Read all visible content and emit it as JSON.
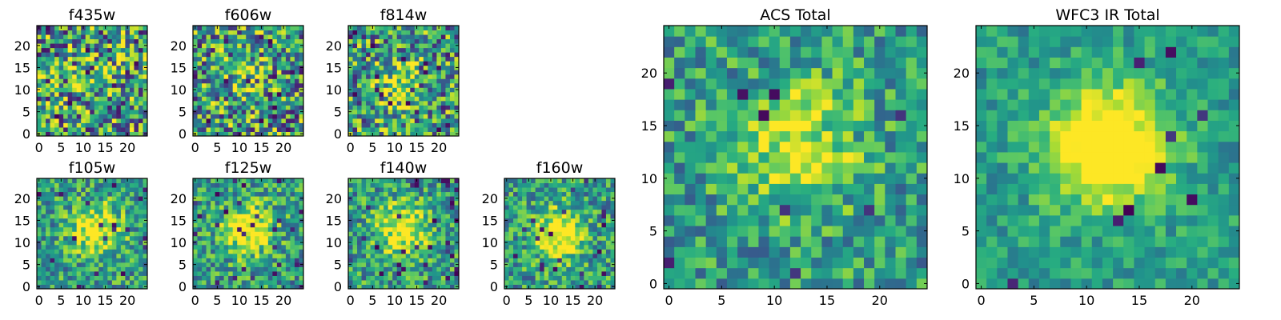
{
  "figure": {
    "colormap": "viridis",
    "colors": {
      "low": "#440154",
      "mid": "#21918c",
      "high": "#fde725"
    },
    "background": "#ffffff"
  },
  "chart_data": [
    {
      "type": "heatmap",
      "title": "f435w",
      "grid_size": 25,
      "xlim": [
        0,
        24
      ],
      "ylim": [
        0,
        24
      ],
      "x_ticks": [
        "0",
        "5",
        "10",
        "15",
        "20"
      ],
      "y_ticks": [
        "0",
        "5",
        "10",
        "15",
        "20"
      ],
      "pattern": {
        "center": [
          12,
          12
        ],
        "peak": 0.15,
        "noise": 0.95,
        "dark_pixels": 0.04
      }
    },
    {
      "type": "heatmap",
      "title": "f606w",
      "grid_size": 25,
      "xlim": [
        0,
        24
      ],
      "ylim": [
        0,
        24
      ],
      "x_ticks": [
        "0",
        "5",
        "10",
        "15",
        "20"
      ],
      "y_ticks": [
        "0",
        "5",
        "10",
        "15",
        "20"
      ],
      "pattern": {
        "center": [
          12,
          12
        ],
        "peak": 0.2,
        "noise": 0.9,
        "dark_pixels": 0.05
      }
    },
    {
      "type": "heatmap",
      "title": "f814w",
      "grid_size": 25,
      "xlim": [
        0,
        24
      ],
      "ylim": [
        0,
        24
      ],
      "x_ticks": [
        "0",
        "5",
        "10",
        "15",
        "20"
      ],
      "y_ticks": [
        "0",
        "5",
        "10",
        "15",
        "20"
      ],
      "pattern": {
        "center": [
          12,
          12
        ],
        "peak": 0.3,
        "noise": 0.85,
        "dark_pixels": 0.05
      }
    },
    {
      "type": "heatmap",
      "title": "f105w",
      "grid_size": 25,
      "xlim": [
        0,
        24
      ],
      "ylim": [
        0,
        24
      ],
      "x_ticks": [
        "0",
        "5",
        "10",
        "15",
        "20"
      ],
      "y_ticks": [
        "0",
        "5",
        "10",
        "15",
        "20"
      ],
      "pattern": {
        "center": [
          13,
          13
        ],
        "peak": 0.55,
        "noise": 0.6,
        "dark_pixels": 0.04
      }
    },
    {
      "type": "heatmap",
      "title": "f125w",
      "grid_size": 25,
      "xlim": [
        0,
        24
      ],
      "ylim": [
        0,
        24
      ],
      "x_ticks": [
        "0",
        "5",
        "10",
        "15",
        "20"
      ],
      "y_ticks": [
        "0",
        "5",
        "10",
        "15",
        "20"
      ],
      "pattern": {
        "center": [
          12,
          13
        ],
        "peak": 0.55,
        "noise": 0.6,
        "dark_pixels": 0.05
      }
    },
    {
      "type": "heatmap",
      "title": "f140w",
      "grid_size": 25,
      "xlim": [
        0,
        24
      ],
      "ylim": [
        0,
        24
      ],
      "x_ticks": [
        "0",
        "5",
        "10",
        "15",
        "20"
      ],
      "y_ticks": [
        "0",
        "5",
        "10",
        "15",
        "20"
      ],
      "pattern": {
        "center": [
          12,
          13
        ],
        "peak": 0.55,
        "noise": 0.6,
        "dark_pixels": 0.04
      }
    },
    {
      "type": "heatmap",
      "title": "f160w",
      "grid_size": 25,
      "xlim": [
        0,
        24
      ],
      "ylim": [
        0,
        24
      ],
      "x_ticks": [
        "0",
        "5",
        "10",
        "15",
        "20"
      ],
      "y_ticks": [
        "0",
        "5",
        "10",
        "15",
        "20"
      ],
      "pattern": {
        "center": [
          12,
          12
        ],
        "peak": 0.6,
        "noise": 0.6,
        "dark_pixels": 0.05
      }
    },
    {
      "type": "heatmap",
      "title": "ACS Total",
      "grid_size": 25,
      "xlim": [
        0,
        24
      ],
      "ylim": [
        0,
        24
      ],
      "x_ticks": [
        "0",
        "5",
        "10",
        "15",
        "20"
      ],
      "y_ticks": [
        "0",
        "5",
        "10",
        "15",
        "20"
      ],
      "pattern": {
        "center": [
          12,
          13
        ],
        "peak": 0.45,
        "noise": 0.55,
        "dark_pixels": 0.03
      }
    },
    {
      "type": "heatmap",
      "title": "WFC3 IR Total",
      "grid_size": 25,
      "xlim": [
        0,
        24
      ],
      "ylim": [
        0,
        24
      ],
      "x_ticks": [
        "0",
        "5",
        "10",
        "15",
        "20"
      ],
      "y_ticks": [
        "0",
        "5",
        "10",
        "15",
        "20"
      ],
      "pattern": {
        "center": [
          12,
          13
        ],
        "peak": 0.75,
        "noise": 0.35,
        "dark_pixels": 0.015
      }
    }
  ]
}
